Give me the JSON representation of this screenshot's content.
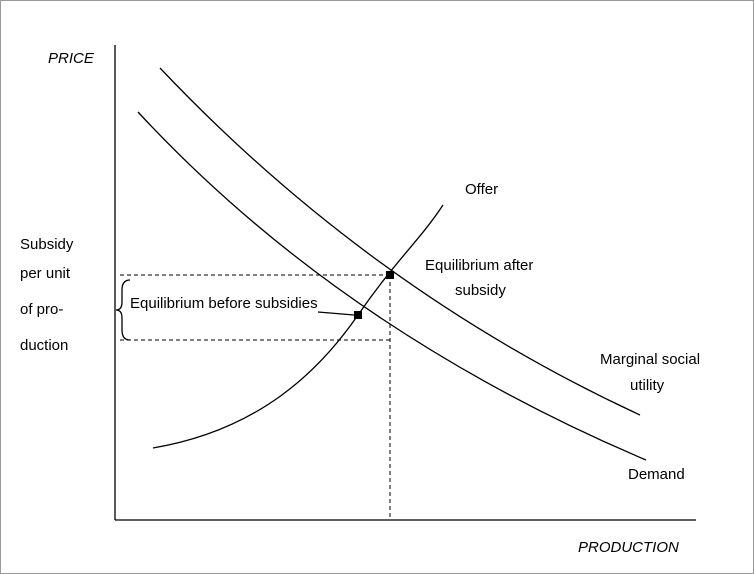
{
  "axes": {
    "y_label": "PRICE",
    "x_label": "PRODUCTION"
  },
  "curves": {
    "offer": "Offer",
    "marginal_social_utility": [
      "Marginal social",
      "utility"
    ],
    "demand": "Demand"
  },
  "points": {
    "after": [
      "Equilibrium after",
      "subsidy"
    ],
    "before": "Equilibrium before subsidies"
  },
  "subsidy": [
    "Subsidy",
    "per unit",
    "of pro-",
    "duction"
  ]
}
